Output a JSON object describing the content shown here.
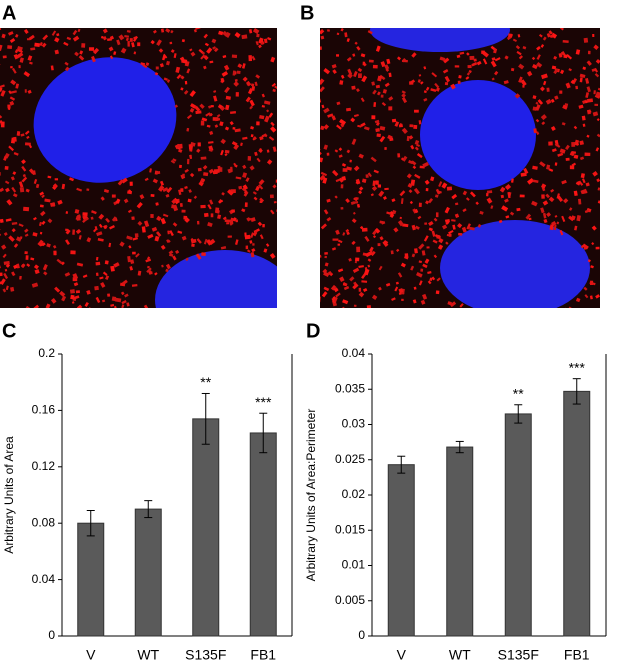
{
  "panel_labels": [
    "A",
    "B",
    "C",
    "D"
  ],
  "chart_data": [
    {
      "type": "bar",
      "ylabel": "Arbitrary Units of Area",
      "categories": [
        "V",
        "WT",
        "S135F",
        "FB1"
      ],
      "values": [
        0.08,
        0.09,
        0.154,
        0.144
      ],
      "errors": [
        0.009,
        0.006,
        0.018,
        0.014
      ],
      "significance": [
        null,
        null,
        "**",
        "***"
      ],
      "color": "#5a5a5a",
      "ylim": [
        0,
        0.2
      ],
      "yticks": [
        0,
        0.04,
        0.08,
        0.12,
        0.16,
        0.2
      ]
    },
    {
      "type": "bar",
      "ylabel": "Arbitrary Units of Area:Perimeter",
      "categories": [
        "V",
        "WT",
        "S135F",
        "FB1"
      ],
      "values": [
        0.0243,
        0.0268,
        0.0315,
        0.0347
      ],
      "errors": [
        0.0012,
        0.0008,
        0.0013,
        0.0018
      ],
      "significance": [
        null,
        null,
        "**",
        "***"
      ],
      "color": "#5a5a5a",
      "ylim": [
        0,
        0.04
      ],
      "yticks": [
        0,
        0.005,
        0.01,
        0.015,
        0.02,
        0.025,
        0.03,
        0.035,
        0.04
      ]
    }
  ]
}
